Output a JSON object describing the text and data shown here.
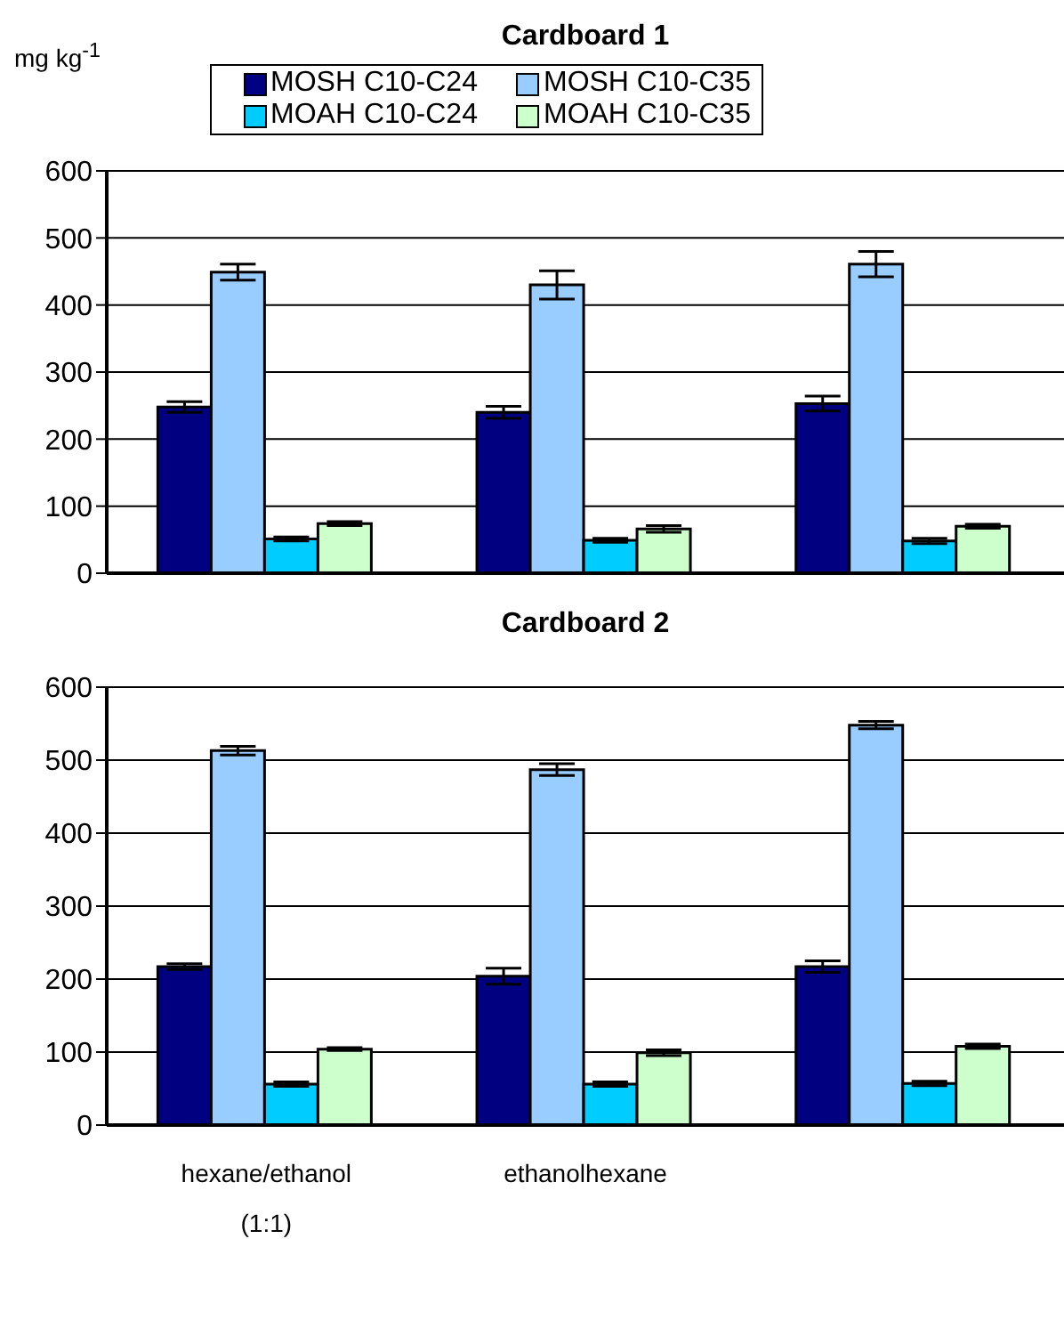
{
  "chart_data": [
    {
      "type": "bar",
      "title": "Cardboard 1",
      "ylabel": "mg kg$^{-1}$",
      "categories": [
        null,
        null,
        null
      ],
      "ylim": [
        0,
        600
      ],
      "yticks": [
        0,
        100,
        200,
        300,
        400,
        500,
        600
      ],
      "grid": "y",
      "legend": "top",
      "tick_labels": "y",
      "series": [
        {
          "name": "MOSH C10-C24",
          "color": "#000080",
          "values": [
            248,
            240,
            253
          ],
          "errors": [
            8,
            9,
            11
          ]
        },
        {
          "name": "MOSH C10-C35",
          "color": "#99ccff",
          "values": [
            449,
            430,
            461
          ],
          "errors": [
            12,
            21,
            19
          ]
        },
        {
          "name": "MOAH C10-C24",
          "color": "#00ccff",
          "values": [
            51,
            49,
            48
          ],
          "errors": [
            3,
            3,
            4
          ]
        },
        {
          "name": "MOAH C10-C35",
          "color": "#ccffcc",
          "values": [
            74,
            66,
            70
          ],
          "errors": [
            3,
            5,
            3
          ]
        }
      ]
    },
    {
      "type": "bar",
      "title": "Cardboard 2",
      "categories": [
        "hexane/ethanol (1:1)",
        "ethanolhexane",
        null
      ],
      "ylim": [
        0,
        600
      ],
      "yticks": [
        0,
        100,
        200,
        300,
        400,
        500,
        600
      ],
      "grid": "y",
      "series": [
        {
          "color": "#000080",
          "values": [
            217,
            204,
            217
          ],
          "errors": [
            4,
            11,
            8
          ]
        },
        {
          "color": "#99ccff",
          "values": [
            513,
            487,
            548
          ],
          "errors": [
            6,
            8,
            5
          ]
        },
        {
          "color": "#00ccff",
          "values": [
            56,
            56,
            57
          ],
          "errors": [
            3,
            3,
            3
          ]
        },
        {
          "color": "#ccffcc",
          "values": [
            104,
            99,
            108
          ],
          "errors": [
            2,
            4,
            3
          ]
        }
      ]
    }
  ]
}
